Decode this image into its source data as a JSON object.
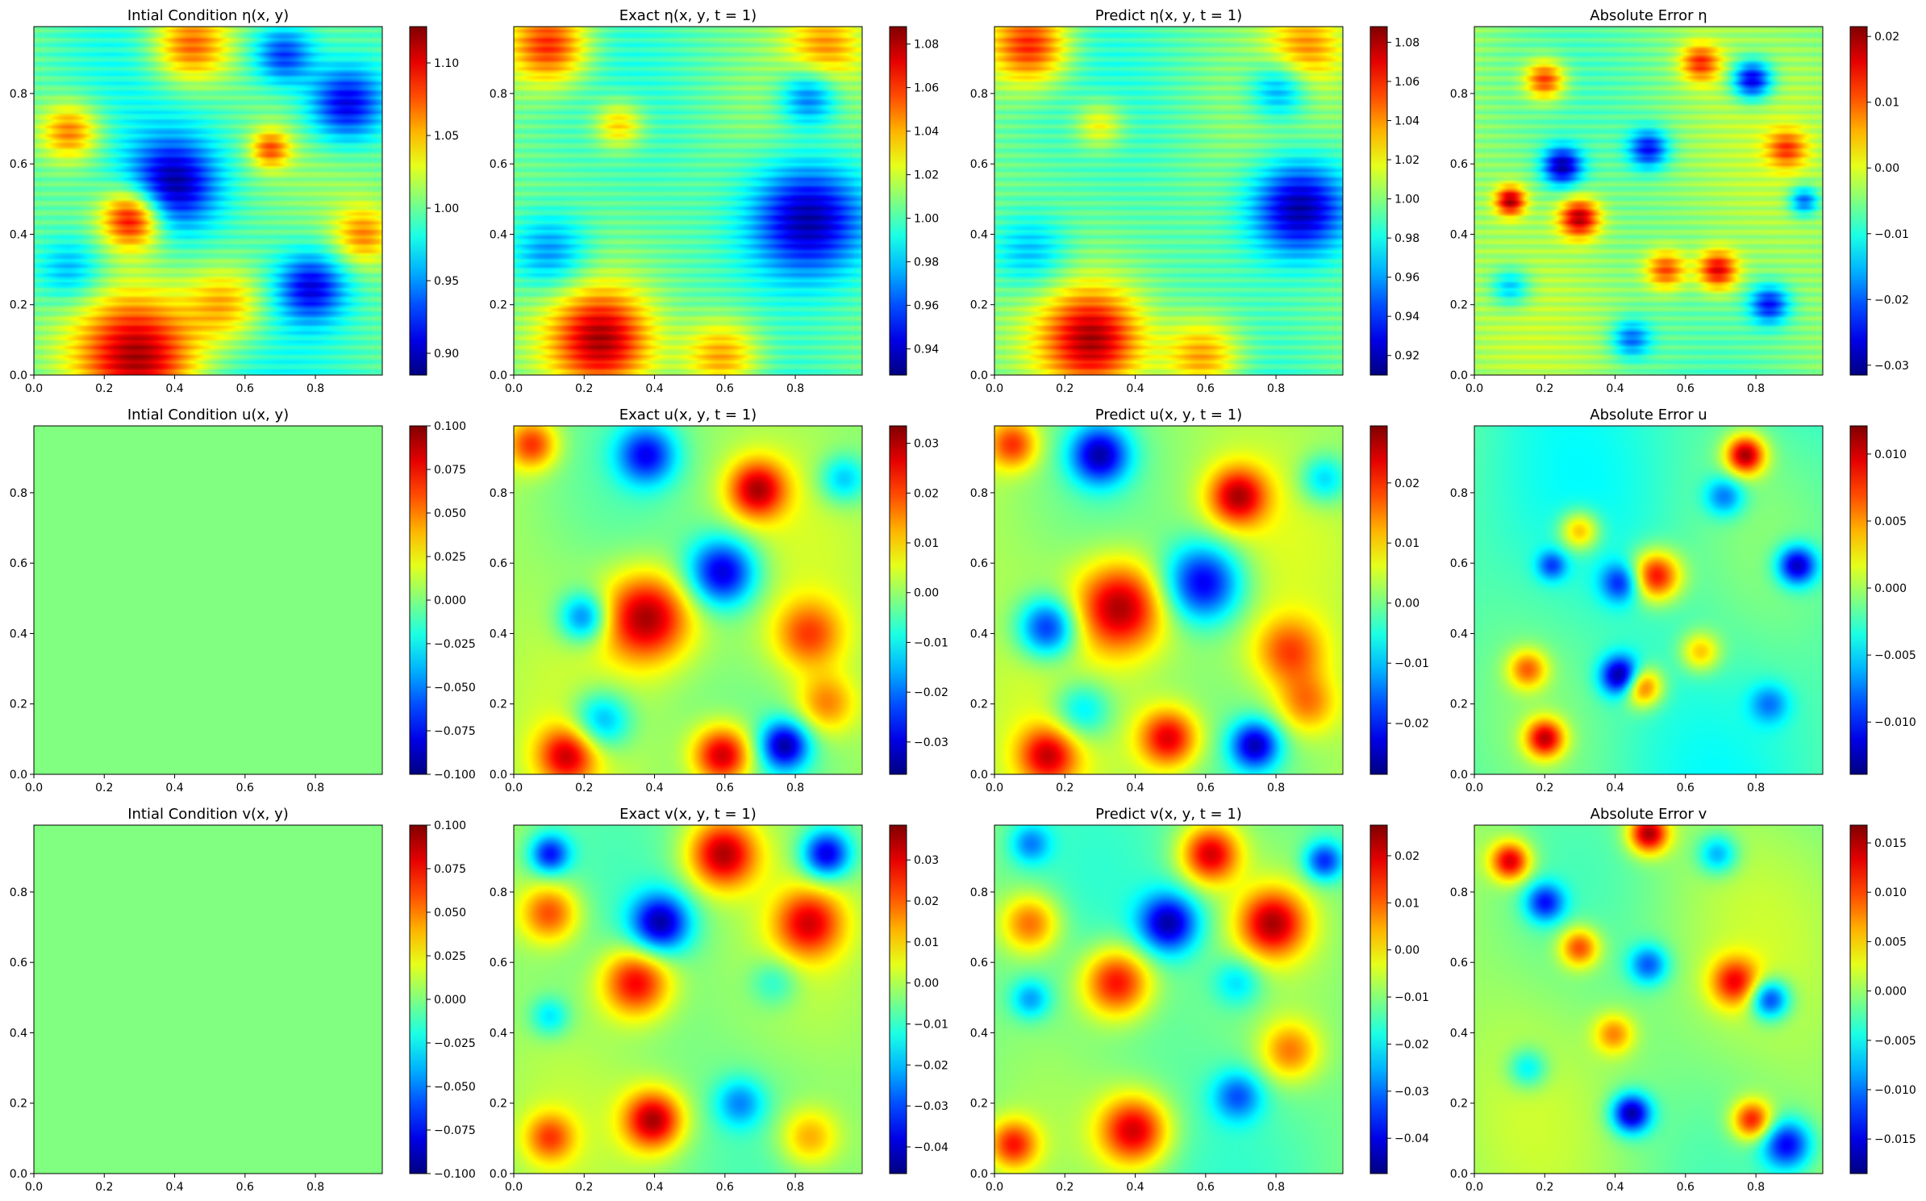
{
  "figure": {
    "layout": "3x4 grid of heatmaps with colorbars"
  },
  "chart_data": [
    {
      "type": "heatmap",
      "title": "Intial Condition η(x, y)",
      "xlim": [
        0,
        0.99
      ],
      "ylim": [
        0,
        0.99
      ],
      "xticks": [
        "0.0",
        "0.2",
        "0.4",
        "0.6",
        "0.8"
      ],
      "yticks": [
        "0.0",
        "0.2",
        "0.4",
        "0.6",
        "0.8"
      ],
      "colorbar": {
        "min": 0.885,
        "max": 1.125,
        "ticks": [
          "0.90",
          "0.95",
          "1.00",
          "1.05",
          "1.10"
        ],
        "tick_values": [
          0.9,
          0.95,
          1.0,
          1.05,
          1.1
        ]
      },
      "colormap": "jet",
      "pattern": "eta0",
      "striped": true
    },
    {
      "type": "heatmap",
      "title": "Exact η(x, y, t = 1)",
      "xlim": [
        0,
        0.99
      ],
      "ylim": [
        0,
        0.99
      ],
      "xticks": [
        "0.0",
        "0.2",
        "0.4",
        "0.6",
        "0.8"
      ],
      "yticks": [
        "0.0",
        "0.2",
        "0.4",
        "0.6",
        "0.8"
      ],
      "colorbar": {
        "min": 0.928,
        "max": 1.088,
        "ticks": [
          "0.94",
          "0.96",
          "0.98",
          "1.00",
          "1.02",
          "1.04",
          "1.06",
          "1.08"
        ],
        "tick_values": [
          0.94,
          0.96,
          0.98,
          1.0,
          1.02,
          1.04,
          1.06,
          1.08
        ]
      },
      "colormap": "jet",
      "pattern": "eta1",
      "striped": true
    },
    {
      "type": "heatmap",
      "title": "Predict η(x, y, t = 1)",
      "xlim": [
        0,
        0.99
      ],
      "ylim": [
        0,
        0.99
      ],
      "xticks": [
        "0.0",
        "0.2",
        "0.4",
        "0.6",
        "0.8"
      ],
      "yticks": [
        "0.0",
        "0.2",
        "0.4",
        "0.6",
        "0.8"
      ],
      "colorbar": {
        "min": 0.91,
        "max": 1.088,
        "ticks": [
          "0.92",
          "0.94",
          "0.96",
          "0.98",
          "1.00",
          "1.02",
          "1.04",
          "1.06",
          "1.08"
        ],
        "tick_values": [
          0.92,
          0.94,
          0.96,
          0.98,
          1.0,
          1.02,
          1.04,
          1.06,
          1.08
        ]
      },
      "colormap": "jet",
      "pattern": "eta1p",
      "striped": true
    },
    {
      "type": "heatmap",
      "title": "Absolute Error η",
      "xlim": [
        0,
        0.99
      ],
      "ylim": [
        0,
        0.99
      ],
      "xticks": [
        "0.0",
        "0.2",
        "0.4",
        "0.6",
        "0.8"
      ],
      "yticks": [
        "0.0",
        "0.2",
        "0.4",
        "0.6",
        "0.8"
      ],
      "colorbar": {
        "min": -0.0315,
        "max": 0.0215,
        "ticks": [
          "−0.03",
          "−0.02",
          "−0.01",
          "0.00",
          "0.01",
          "0.02"
        ],
        "tick_values": [
          -0.03,
          -0.02,
          -0.01,
          0.0,
          0.01,
          0.02
        ]
      },
      "colormap": "jet",
      "pattern": "err_eta",
      "striped": true
    },
    {
      "type": "heatmap",
      "title": "Intial Condition u(x, y)",
      "xlim": [
        0,
        0.99
      ],
      "ylim": [
        0,
        0.99
      ],
      "xticks": [
        "0.0",
        "0.2",
        "0.4",
        "0.6",
        "0.8"
      ],
      "yticks": [
        "0.0",
        "0.2",
        "0.4",
        "0.6",
        "0.8"
      ],
      "colorbar": {
        "min": -0.1,
        "max": 0.1,
        "ticks": [
          "−0.100",
          "−0.075",
          "−0.050",
          "−0.025",
          "0.000",
          "0.025",
          "0.050",
          "0.075",
          "0.100"
        ],
        "tick_values": [
          -0.1,
          -0.075,
          -0.05,
          -0.025,
          0,
          0.025,
          0.05,
          0.075,
          0.1
        ]
      },
      "colormap": "jet",
      "pattern": "constant",
      "constant_value": 0,
      "striped": false
    },
    {
      "type": "heatmap",
      "title": "Exact u(x, y, t = 1)",
      "xlim": [
        0,
        0.99
      ],
      "ylim": [
        0,
        0.99
      ],
      "xticks": [
        "0.0",
        "0.2",
        "0.4",
        "0.6",
        "0.8"
      ],
      "yticks": [
        "0.0",
        "0.2",
        "0.4",
        "0.6",
        "0.8"
      ],
      "colorbar": {
        "min": -0.0365,
        "max": 0.0335,
        "ticks": [
          "−0.03",
          "−0.02",
          "−0.01",
          "0.00",
          "0.01",
          "0.02",
          "0.03"
        ],
        "tick_values": [
          -0.03,
          -0.02,
          -0.01,
          0,
          0.01,
          0.02,
          0.03
        ]
      },
      "colormap": "jet",
      "pattern": "u1",
      "striped": false
    },
    {
      "type": "heatmap",
      "title": "Predict u(x, y, t = 1)",
      "xlim": [
        0,
        0.99
      ],
      "ylim": [
        0,
        0.99
      ],
      "xticks": [
        "0.0",
        "0.2",
        "0.4",
        "0.6",
        "0.8"
      ],
      "yticks": [
        "0.0",
        "0.2",
        "0.4",
        "0.6",
        "0.8"
      ],
      "colorbar": {
        "min": -0.0285,
        "max": 0.0295,
        "ticks": [
          "−0.02",
          "−0.01",
          "0.00",
          "0.01",
          "0.02"
        ],
        "tick_values": [
          -0.02,
          -0.01,
          0,
          0.01,
          0.02
        ]
      },
      "colormap": "jet",
      "pattern": "u1p",
      "striped": false
    },
    {
      "type": "heatmap",
      "title": "Absolute Error u",
      "xlim": [
        0,
        0.99
      ],
      "ylim": [
        0,
        0.99
      ],
      "xticks": [
        "0.0",
        "0.2",
        "0.4",
        "0.6",
        "0.8"
      ],
      "yticks": [
        "0.0",
        "0.2",
        "0.4",
        "0.6",
        "0.8"
      ],
      "colorbar": {
        "min": -0.0139,
        "max": 0.0121,
        "ticks": [
          "−0.010",
          "−0.005",
          "0.000",
          "0.005",
          "0.010"
        ],
        "tick_values": [
          -0.01,
          -0.005,
          0,
          0.005,
          0.01
        ]
      },
      "colormap": "jet",
      "pattern": "err_u",
      "striped": false
    },
    {
      "type": "heatmap",
      "title": "Intial Condition v(x, y)",
      "xlim": [
        0,
        0.99
      ],
      "ylim": [
        0,
        0.99
      ],
      "xticks": [
        "0.0",
        "0.2",
        "0.4",
        "0.6",
        "0.8"
      ],
      "yticks": [
        "0.0",
        "0.2",
        "0.4",
        "0.6",
        "0.8"
      ],
      "colorbar": {
        "min": -0.1,
        "max": 0.1,
        "ticks": [
          "−0.100",
          "−0.075",
          "−0.050",
          "−0.025",
          "0.000",
          "0.025",
          "0.050",
          "0.075",
          "0.100"
        ],
        "tick_values": [
          -0.1,
          -0.075,
          -0.05,
          -0.025,
          0,
          0.025,
          0.05,
          0.075,
          0.1
        ]
      },
      "colormap": "jet",
      "pattern": "constant",
      "constant_value": 0,
      "striped": false
    },
    {
      "type": "heatmap",
      "title": "Exact v(x, y, t = 1)",
      "xlim": [
        0,
        0.99
      ],
      "ylim": [
        0,
        0.99
      ],
      "xticks": [
        "0.0",
        "0.2",
        "0.4",
        "0.6",
        "0.8"
      ],
      "yticks": [
        "0.0",
        "0.2",
        "0.4",
        "0.6",
        "0.8"
      ],
      "colorbar": {
        "min": -0.0465,
        "max": 0.0385,
        "ticks": [
          "−0.04",
          "−0.03",
          "−0.02",
          "−0.01",
          "0.00",
          "0.01",
          "0.02",
          "0.03"
        ],
        "tick_values": [
          -0.04,
          -0.03,
          -0.02,
          -0.01,
          0,
          0.01,
          0.02,
          0.03
        ]
      },
      "colormap": "jet",
      "pattern": "v1",
      "striped": false
    },
    {
      "type": "heatmap",
      "title": "Predict v(x, y, t = 1)",
      "xlim": [
        0,
        0.99
      ],
      "ylim": [
        0,
        0.99
      ],
      "xticks": [
        "0.0",
        "0.2",
        "0.4",
        "0.6",
        "0.8"
      ],
      "yticks": [
        "0.0",
        "0.2",
        "0.4",
        "0.6",
        "0.8"
      ],
      "colorbar": {
        "min": -0.0475,
        "max": 0.0265,
        "ticks": [
          "−0.04",
          "−0.03",
          "−0.02",
          "−0.01",
          "0.00",
          "0.01",
          "0.02"
        ],
        "tick_values": [
          -0.04,
          -0.03,
          -0.02,
          -0.01,
          0,
          0.01,
          0.02
        ]
      },
      "colormap": "jet",
      "pattern": "v1p",
      "striped": false
    },
    {
      "type": "heatmap",
      "title": "Absolute Error v",
      "xlim": [
        0,
        0.99
      ],
      "ylim": [
        0,
        0.99
      ],
      "xticks": [
        "0.0",
        "0.2",
        "0.4",
        "0.6",
        "0.8"
      ],
      "yticks": [
        "0.0",
        "0.2",
        "0.4",
        "0.6",
        "0.8"
      ],
      "colorbar": {
        "min": -0.0185,
        "max": 0.0168,
        "ticks": [
          "−0.015",
          "−0.010",
          "−0.005",
          "0.000",
          "0.005",
          "0.010",
          "0.015"
        ],
        "tick_values": [
          -0.015,
          -0.01,
          -0.005,
          0,
          0.005,
          0.01,
          0.015
        ]
      },
      "colormap": "jet",
      "pattern": "err_v",
      "striped": false
    }
  ]
}
